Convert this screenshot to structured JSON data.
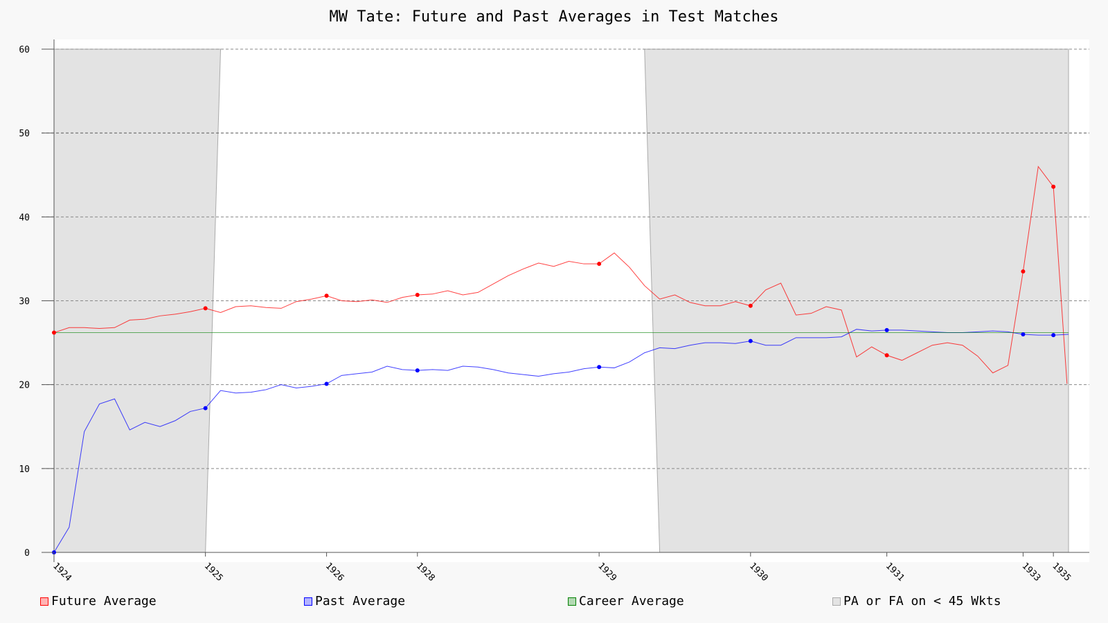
{
  "chart_data": {
    "type": "line",
    "title": "MW Tate: Future and Past Averages in Test Matches",
    "xlabel": "",
    "ylabel": "",
    "ylim": [
      0,
      60
    ],
    "yticks": [
      0,
      10,
      20,
      30,
      40,
      50,
      60
    ],
    "x_tick_labels": [
      {
        "index": 0,
        "label": "1924"
      },
      {
        "index": 10,
        "label": "1925"
      },
      {
        "index": 18,
        "label": "1926"
      },
      {
        "index": 24,
        "label": "1928"
      },
      {
        "index": 36,
        "label": "1929"
      },
      {
        "index": 46,
        "label": "1930"
      },
      {
        "index": 55,
        "label": "1931"
      },
      {
        "index": 64,
        "label": "1933"
      },
      {
        "index": 66,
        "label": "1935"
      }
    ],
    "grid": true,
    "legend_position": "bottom",
    "series": [
      {
        "name": "Future Average",
        "color": "#ff0000",
        "marker_indices": [
          0,
          10,
          18,
          24,
          36,
          46,
          55,
          64,
          66
        ],
        "values": [
          26.2,
          26.8,
          26.8,
          26.7,
          26.8,
          27.7,
          27.8,
          28.2,
          28.4,
          28.7,
          29.1,
          28.6,
          29.3,
          29.4,
          29.2,
          29.1,
          29.9,
          30.2,
          30.6,
          30.0,
          29.9,
          30.1,
          29.8,
          30.4,
          30.7,
          30.8,
          31.2,
          30.7,
          31.0,
          32.0,
          33.0,
          33.8,
          34.5,
          34.1,
          34.7,
          34.4,
          34.4,
          35.7,
          34.0,
          31.8,
          30.2,
          30.7,
          29.8,
          29.4,
          29.4,
          29.9,
          29.4,
          31.3,
          32.1,
          28.3,
          28.5,
          29.3,
          28.9,
          23.3,
          24.5,
          23.5,
          22.9,
          23.8,
          24.7,
          25.0,
          24.7,
          23.4,
          21.4,
          22.3,
          33.5,
          46.0,
          43.6,
          20.1
        ],
        "last_x": 66.9
      },
      {
        "name": "Past Average",
        "color": "#0000ff",
        "marker_indices": [
          0,
          10,
          18,
          24,
          36,
          46,
          55,
          64,
          66
        ],
        "values": [
          0.0,
          3.0,
          14.4,
          17.7,
          18.3,
          14.6,
          15.5,
          15.0,
          15.7,
          16.8,
          17.2,
          19.3,
          19.0,
          19.1,
          19.4,
          20.0,
          19.6,
          19.8,
          20.1,
          21.1,
          21.3,
          21.5,
          22.2,
          21.8,
          21.7,
          21.8,
          21.7,
          22.2,
          22.1,
          21.8,
          21.4,
          21.2,
          21.0,
          21.3,
          21.5,
          21.9,
          22.1,
          22.0,
          22.7,
          23.8,
          24.4,
          24.3,
          24.7,
          25.0,
          25.0,
          24.9,
          25.2,
          24.7,
          24.7,
          25.6,
          25.6,
          25.6,
          25.7,
          26.6,
          26.4,
          26.5,
          26.5,
          26.4,
          26.3,
          26.2,
          26.2,
          26.3,
          26.4,
          26.3,
          26.0,
          25.9,
          25.9,
          26.0
        ]
      },
      {
        "name": "Career Average",
        "color": "#008000",
        "values": [
          26.2,
          26.2
        ]
      }
    ],
    "shaded_region": {
      "name": "PA or FA on < 45 Wkts",
      "regions": [
        {
          "x_top": [
            0,
            11
          ],
          "x_bottom": [
            0,
            10
          ]
        },
        {
          "x_top": [
            39,
            67
          ],
          "x_bottom": [
            40,
            67
          ]
        }
      ]
    }
  },
  "legend": [
    {
      "label": "Future Average",
      "fill": "#ffb3b3",
      "stroke": "#ff0000"
    },
    {
      "label": "Past Average",
      "fill": "#b3b3ff",
      "stroke": "#0000ff"
    },
    {
      "label": "Career Average",
      "fill": "#b3d9b3",
      "stroke": "#008000"
    },
    {
      "label": "PA or FA on < 45 Wkts",
      "fill": "#e3e3e3",
      "stroke": "#aaaaaa"
    }
  ]
}
